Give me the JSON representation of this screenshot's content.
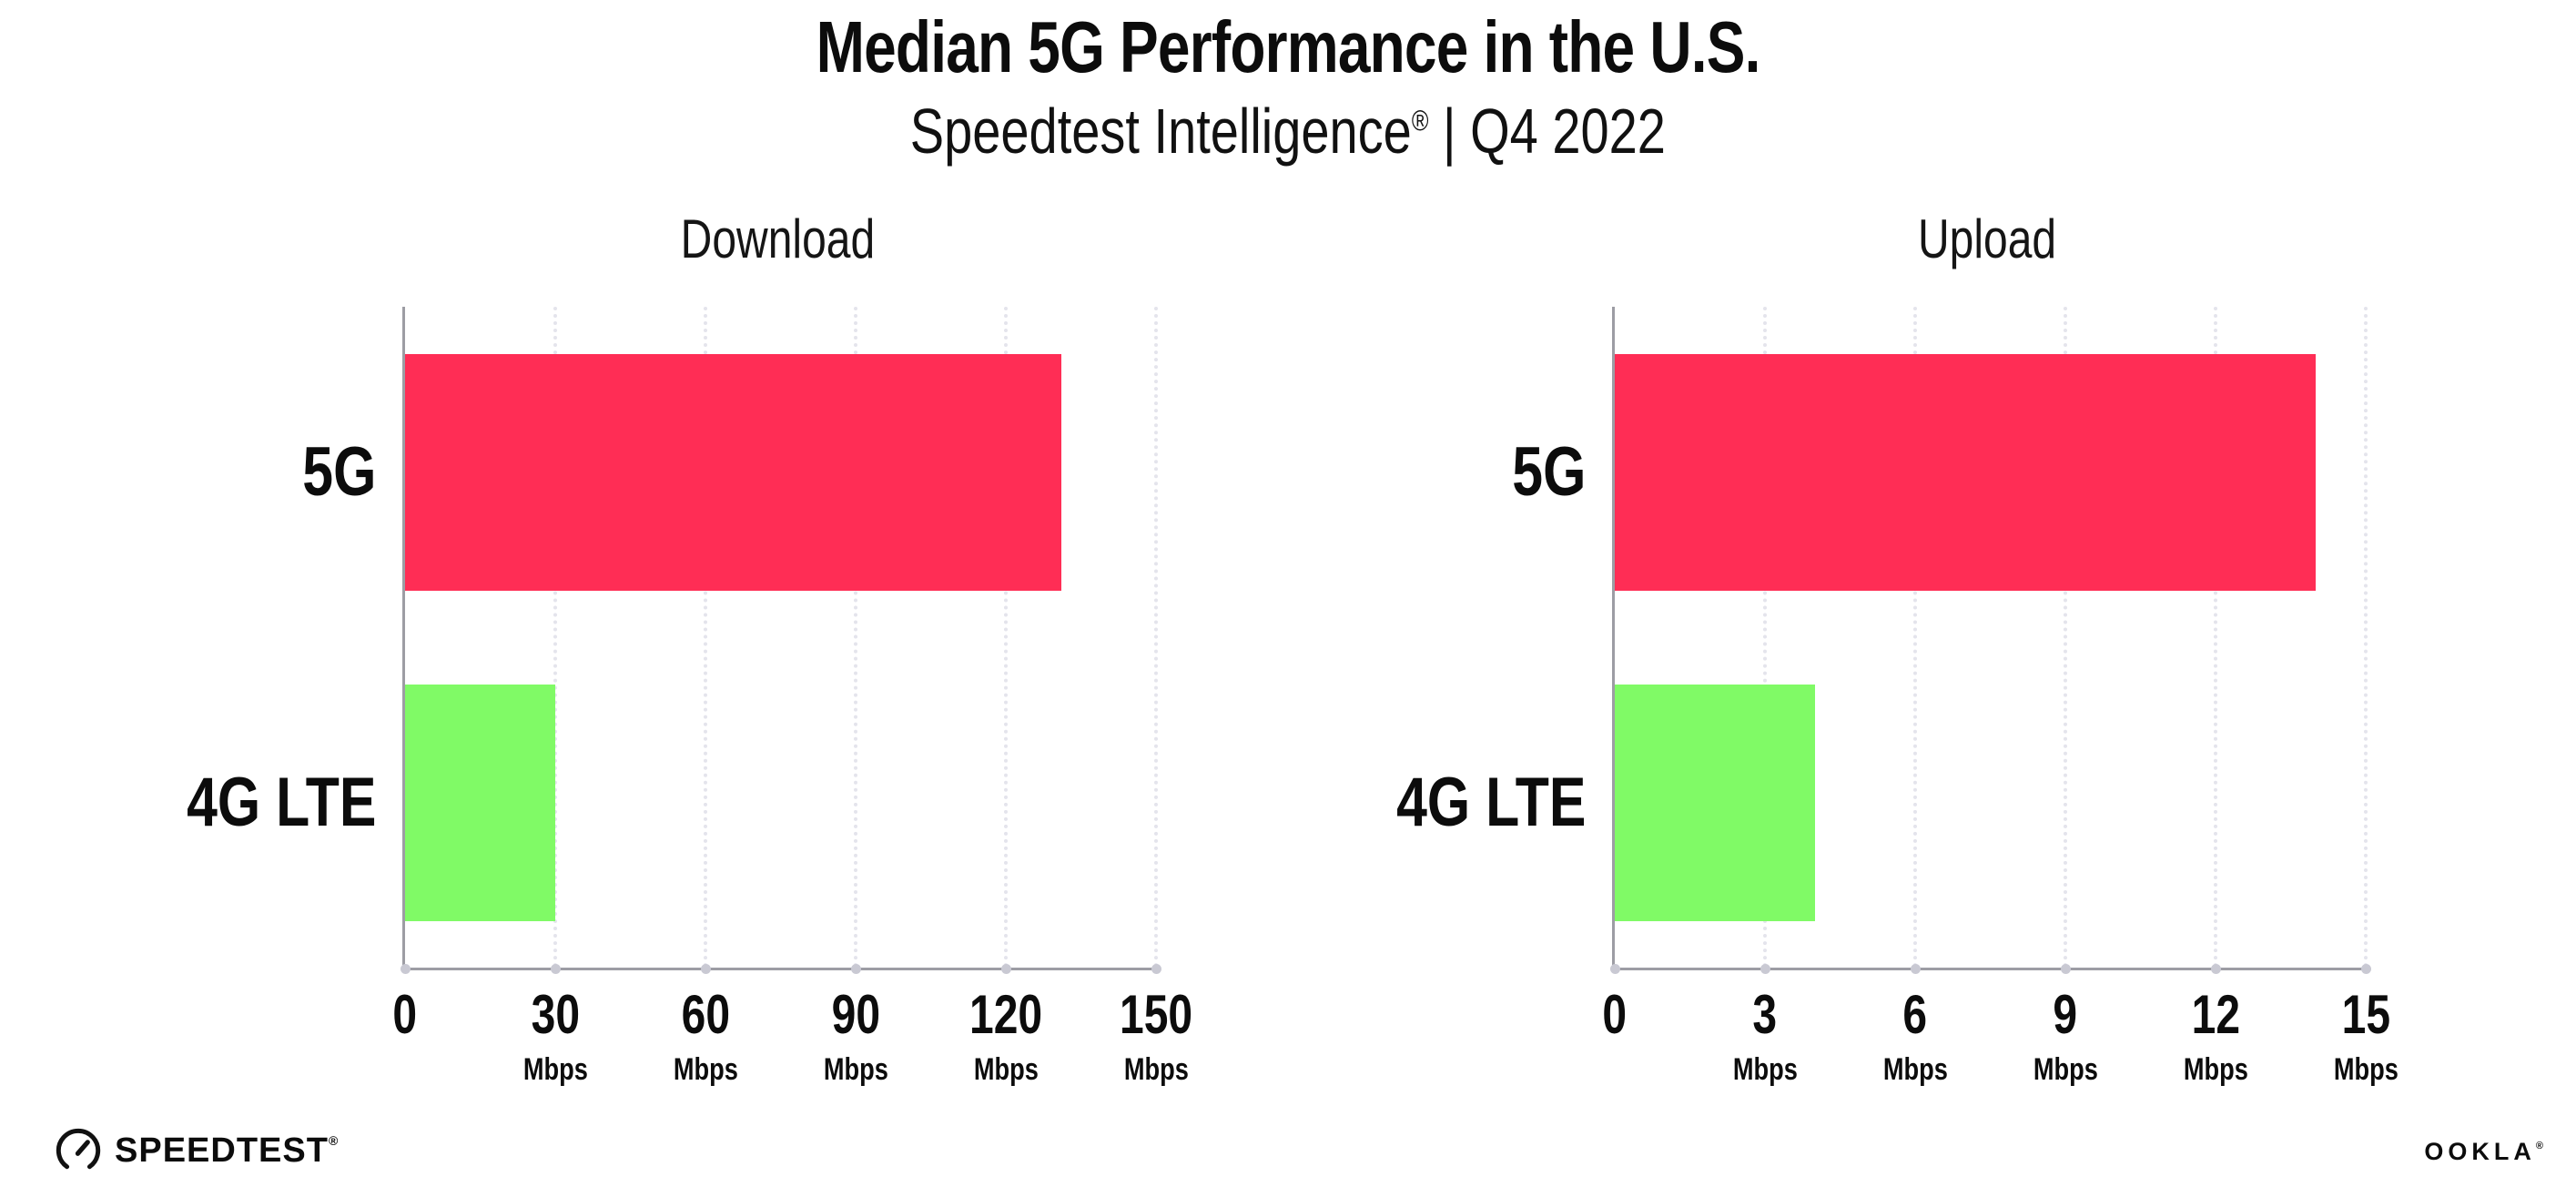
{
  "header": {
    "title": "Median 5G Performance in the U.S.",
    "subtitle_brand": "Speedtest Intelligence",
    "subtitle_reg": "®",
    "subtitle_rest": " | Q4 2022"
  },
  "colors": {
    "bar_5g": "#FF2D55",
    "bar_4g_lte": "#80FA66",
    "axis": "#9D9DA4",
    "gridline": "#E4E4EC",
    "text": "#0C0C0C"
  },
  "chart_data": [
    {
      "type": "bar",
      "orientation": "horizontal",
      "title": "Download",
      "categories": [
        "5G",
        "4G LTE"
      ],
      "values": [
        131,
        30
      ],
      "bar_colors": [
        "#FF2D55",
        "#80FA66"
      ],
      "unit": "Mbps",
      "xlim": [
        0,
        150
      ],
      "xticks": [
        0,
        30,
        60,
        90,
        120,
        150
      ],
      "grid": "dotted-vertical",
      "legend": "none"
    },
    {
      "type": "bar",
      "orientation": "horizontal",
      "title": "Upload",
      "categories": [
        "5G",
        "4G LTE"
      ],
      "values": [
        14,
        4
      ],
      "bar_colors": [
        "#FF2D55",
        "#80FA66"
      ],
      "unit": "Mbps",
      "xlim": [
        0,
        15
      ],
      "xticks": [
        0,
        3,
        6,
        9,
        12,
        15
      ],
      "grid": "dotted-vertical",
      "legend": "none"
    }
  ],
  "footer": {
    "speedtest_text": "SPEEDTEST",
    "speedtest_reg": "®",
    "ookla_text": "OOKLA",
    "ookla_reg": "®"
  }
}
